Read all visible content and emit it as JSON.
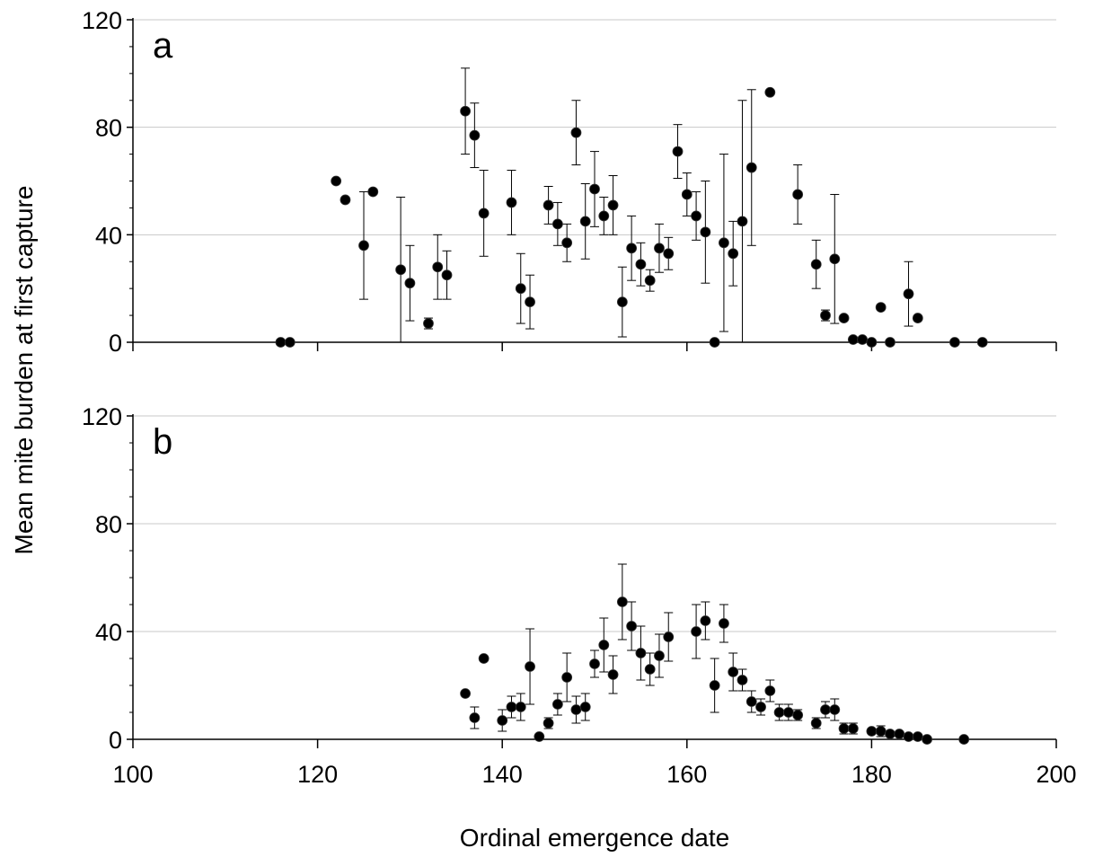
{
  "chart_data": [
    {
      "type": "scatter",
      "panel_label": "a",
      "xlim": [
        100,
        200
      ],
      "ylim": [
        0,
        120
      ],
      "y_ticks": [
        "0",
        "40",
        "80",
        "120"
      ],
      "gridlines": "horizontal",
      "points": [
        {
          "x": 116,
          "y": 0
        },
        {
          "x": 117,
          "y": 0
        },
        {
          "x": 122,
          "y": 60
        },
        {
          "x": 123,
          "y": 53
        },
        {
          "x": 125,
          "y": 36,
          "err": 20
        },
        {
          "x": 126,
          "y": 56
        },
        {
          "x": 129,
          "y": 27,
          "err": 27
        },
        {
          "x": 130,
          "y": 22,
          "err": 14
        },
        {
          "x": 132,
          "y": 7,
          "err": 2
        },
        {
          "x": 133,
          "y": 28,
          "err": 12
        },
        {
          "x": 134,
          "y": 25,
          "err": 9
        },
        {
          "x": 136,
          "y": 86,
          "err": 16
        },
        {
          "x": 137,
          "y": 77,
          "err": 12
        },
        {
          "x": 138,
          "y": 48,
          "err": 16
        },
        {
          "x": 141,
          "y": 52,
          "err": 12
        },
        {
          "x": 142,
          "y": 20,
          "err": 13
        },
        {
          "x": 143,
          "y": 15,
          "err": 10
        },
        {
          "x": 145,
          "y": 51,
          "err": 7
        },
        {
          "x": 146,
          "y": 44,
          "err": 8
        },
        {
          "x": 147,
          "y": 37,
          "err": 7
        },
        {
          "x": 148,
          "y": 78,
          "err": 12
        },
        {
          "x": 149,
          "y": 45,
          "err": 14
        },
        {
          "x": 150,
          "y": 57,
          "err": 14
        },
        {
          "x": 151,
          "y": 47,
          "err": 7
        },
        {
          "x": 152,
          "y": 51,
          "err": 11
        },
        {
          "x": 153,
          "y": 15,
          "err": 13
        },
        {
          "x": 154,
          "y": 35,
          "err": 12
        },
        {
          "x": 155,
          "y": 29,
          "err": 8
        },
        {
          "x": 156,
          "y": 23,
          "err": 4
        },
        {
          "x": 157,
          "y": 35,
          "err": 9
        },
        {
          "x": 158,
          "y": 33,
          "err": 6
        },
        {
          "x": 159,
          "y": 71,
          "err": 10
        },
        {
          "x": 160,
          "y": 55,
          "err": 8
        },
        {
          "x": 161,
          "y": 47,
          "err": 9
        },
        {
          "x": 162,
          "y": 41,
          "err": 19
        },
        {
          "x": 163,
          "y": 0
        },
        {
          "x": 164,
          "y": 37,
          "err": 33
        },
        {
          "x": 165,
          "y": 33,
          "err": 12
        },
        {
          "x": 166,
          "y": 45,
          "err": 45
        },
        {
          "x": 167,
          "y": 65,
          "err": 29
        },
        {
          "x": 169,
          "y": 93
        },
        {
          "x": 172,
          "y": 55,
          "err": 11
        },
        {
          "x": 174,
          "y": 29,
          "err": 9
        },
        {
          "x": 175,
          "y": 10,
          "err": 2
        },
        {
          "x": 176,
          "y": 31,
          "err": 24
        },
        {
          "x": 177,
          "y": 9
        },
        {
          "x": 178,
          "y": 1
        },
        {
          "x": 179,
          "y": 1
        },
        {
          "x": 180,
          "y": 0
        },
        {
          "x": 181,
          "y": 13
        },
        {
          "x": 182,
          "y": 0
        },
        {
          "x": 184,
          "y": 18,
          "err": 12
        },
        {
          "x": 185,
          "y": 9
        },
        {
          "x": 189,
          "y": 0
        },
        {
          "x": 192,
          "y": 0
        }
      ]
    },
    {
      "type": "scatter",
      "panel_label": "b",
      "xlim": [
        100,
        200
      ],
      "ylim": [
        0,
        120
      ],
      "y_ticks": [
        "0",
        "40",
        "80",
        "120"
      ],
      "x_ticks": [
        "100",
        "120",
        "140",
        "160",
        "180",
        "200"
      ],
      "gridlines": "horizontal",
      "points": [
        {
          "x": 136,
          "y": 17
        },
        {
          "x": 137,
          "y": 8,
          "err": 4
        },
        {
          "x": 138,
          "y": 30
        },
        {
          "x": 140,
          "y": 7,
          "err": 4
        },
        {
          "x": 141,
          "y": 12,
          "err": 4
        },
        {
          "x": 142,
          "y": 12,
          "err": 5
        },
        {
          "x": 143,
          "y": 27,
          "err": 14
        },
        {
          "x": 144,
          "y": 1
        },
        {
          "x": 145,
          "y": 6,
          "err": 2
        },
        {
          "x": 146,
          "y": 13,
          "err": 4
        },
        {
          "x": 147,
          "y": 23,
          "err": 9
        },
        {
          "x": 148,
          "y": 11,
          "err": 5
        },
        {
          "x": 149,
          "y": 12,
          "err": 5
        },
        {
          "x": 150,
          "y": 28,
          "err": 5
        },
        {
          "x": 151,
          "y": 35,
          "err": 10
        },
        {
          "x": 152,
          "y": 24,
          "err": 7
        },
        {
          "x": 153,
          "y": 51,
          "err": 14
        },
        {
          "x": 154,
          "y": 42,
          "err": 9
        },
        {
          "x": 155,
          "y": 32,
          "err": 10
        },
        {
          "x": 156,
          "y": 26,
          "err": 6
        },
        {
          "x": 157,
          "y": 31,
          "err": 8
        },
        {
          "x": 158,
          "y": 38,
          "err": 9
        },
        {
          "x": 161,
          "y": 40,
          "err": 10
        },
        {
          "x": 162,
          "y": 44,
          "err": 7
        },
        {
          "x": 163,
          "y": 20,
          "err": 10
        },
        {
          "x": 164,
          "y": 43,
          "err": 7
        },
        {
          "x": 165,
          "y": 25,
          "err": 7
        },
        {
          "x": 166,
          "y": 22,
          "err": 4
        },
        {
          "x": 167,
          "y": 14,
          "err": 4
        },
        {
          "x": 168,
          "y": 12,
          "err": 3
        },
        {
          "x": 169,
          "y": 18,
          "err": 4
        },
        {
          "x": 170,
          "y": 10,
          "err": 3
        },
        {
          "x": 171,
          "y": 10,
          "err": 3
        },
        {
          "x": 172,
          "y": 9,
          "err": 2
        },
        {
          "x": 174,
          "y": 6,
          "err": 2
        },
        {
          "x": 175,
          "y": 11,
          "err": 3
        },
        {
          "x": 176,
          "y": 11,
          "err": 4
        },
        {
          "x": 177,
          "y": 4,
          "err": 2
        },
        {
          "x": 178,
          "y": 4,
          "err": 2
        },
        {
          "x": 180,
          "y": 3
        },
        {
          "x": 181,
          "y": 3,
          "err": 2
        },
        {
          "x": 182,
          "y": 2
        },
        {
          "x": 183,
          "y": 2
        },
        {
          "x": 184,
          "y": 1
        },
        {
          "x": 185,
          "y": 1
        },
        {
          "x": 186,
          "y": 0
        },
        {
          "x": 190,
          "y": 0
        }
      ]
    }
  ],
  "xlabel": "Ordinal emergence date",
  "ylabel": "Mean mite burden at first capture",
  "colors": {
    "marker": "#000000",
    "gridline": "#c8c8c8",
    "axis": "#000000"
  }
}
